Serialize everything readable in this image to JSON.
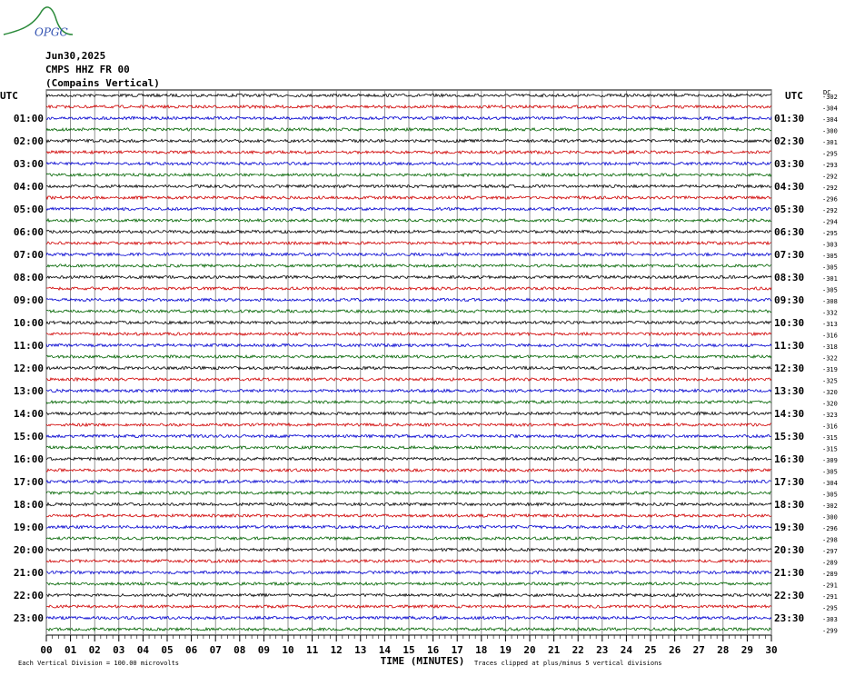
{
  "header": {
    "logo": "OPGC",
    "date": "Jun30,2025",
    "station": "CMPS HHZ FR 00",
    "location": "(Compains Vertical)"
  },
  "left_header": "UTC",
  "right_header": "UTC",
  "dc_header": "DC",
  "hour_labels": [
    "01:00",
    "02:00",
    "03:00",
    "04:00",
    "05:00",
    "06:00",
    "07:00",
    "08:00",
    "09:00",
    "10:00",
    "11:00",
    "12:00",
    "13:00",
    "14:00",
    "15:00",
    "16:00",
    "17:00",
    "18:00",
    "19:00",
    "20:00",
    "21:00",
    "22:00",
    "23:00"
  ],
  "half_labels": [
    "01:30",
    "02:30",
    "03:30",
    "04:30",
    "05:30",
    "06:30",
    "07:30",
    "08:30",
    "09:30",
    "10:30",
    "11:30",
    "12:30",
    "13:30",
    "14:30",
    "15:30",
    "16:30",
    "17:30",
    "18:30",
    "19:30",
    "20:30",
    "21:30",
    "22:30",
    "23:30"
  ],
  "dc_values": [
    -302,
    -304,
    -304,
    -300,
    -301,
    -295,
    -293,
    -292,
    -292,
    -296,
    -292,
    -294,
    -295,
    -303,
    -305,
    -305,
    -301,
    -305,
    -308,
    -332,
    -313,
    -316,
    -318,
    -322,
    -319,
    -325,
    -320,
    -320,
    -323,
    -316,
    -315,
    -315,
    -309,
    -305,
    -304,
    -305,
    -302,
    -300,
    -296,
    -298,
    -297,
    -289,
    -289,
    -291,
    -291,
    -295,
    -303,
    -299
  ],
  "trace_colors": [
    "#000000",
    "#d00000",
    "#0000d0",
    "#006400"
  ],
  "x_axis": {
    "ticks": [
      "00",
      "01",
      "02",
      "03",
      "04",
      "05",
      "06",
      "07",
      "08",
      "09",
      "10",
      "11",
      "12",
      "13",
      "14",
      "15",
      "16",
      "17",
      "18",
      "19",
      "20",
      "21",
      "22",
      "23",
      "24",
      "25",
      "26",
      "27",
      "28",
      "29",
      "30"
    ],
    "label": "TIME (MINUTES)"
  },
  "footer": {
    "scale": "Each Vertical Division =  100.00 microvolts",
    "clip": "Traces clipped at plus/minus 5 vertical divisions"
  }
}
